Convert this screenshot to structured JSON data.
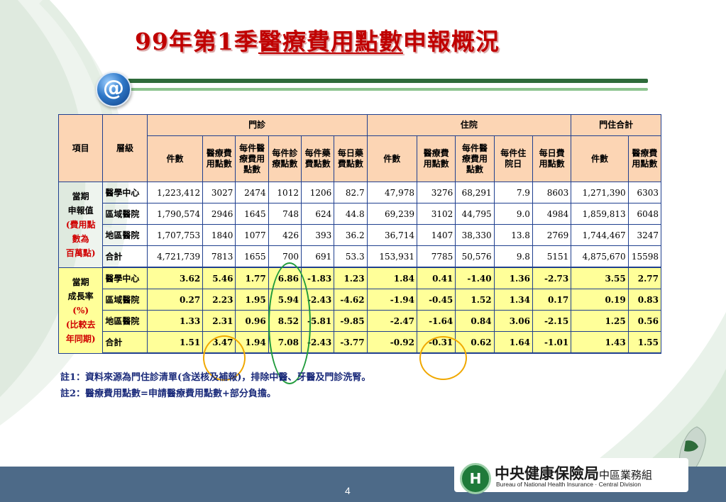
{
  "title": {
    "plain": "99年第1季",
    "underlined": "醫療費用點數",
    "rest": "申報概況"
  },
  "badge": {
    "symbol": "@"
  },
  "table": {
    "header": {
      "item": "項目",
      "level": "層級",
      "group_outpatient": "門診",
      "group_inpatient": "住院",
      "group_total": "門住合計",
      "op_cols": [
        "件數",
        "醫療費用點數",
        "每件醫療費用點數",
        "每件診療點數",
        "每件藥費點數",
        "每日藥費點數"
      ],
      "ip_cols": [
        "件數",
        "醫療費用點數",
        "每件醫療費用點數",
        "每件住院日",
        "每日費用點數"
      ],
      "tot_cols": [
        "件數",
        "醫療費用點數"
      ]
    },
    "section1_label": {
      "l1": "當期",
      "l2": "申報值",
      "l3": "(費用點",
      "l4": "數為",
      "l5": "百萬點)"
    },
    "section2_label": {
      "l1": "當期",
      "l2": "成長率",
      "l3": "(%)",
      "l4": "(比較去",
      "l5": "年同期)"
    },
    "section1_rows": [
      {
        "level": "醫學中心",
        "values": [
          "1,223,412",
          "3027",
          "2474",
          "1012",
          "1206",
          "82.7",
          "47,978",
          "3276",
          "68,291",
          "7.9",
          "8603",
          "1,271,390",
          "6303"
        ]
      },
      {
        "level": "區域醫院",
        "values": [
          "1,790,574",
          "2946",
          "1645",
          "748",
          "624",
          "44.8",
          "69,239",
          "3102",
          "44,795",
          "9.0",
          "4984",
          "1,859,813",
          "6048"
        ]
      },
      {
        "level": "地區醫院",
        "values": [
          "1,707,753",
          "1840",
          "1077",
          "426",
          "393",
          "36.2",
          "36,714",
          "1407",
          "38,330",
          "13.8",
          "2769",
          "1,744,467",
          "3247"
        ]
      },
      {
        "level": "合計",
        "values": [
          "4,721,739",
          "7813",
          "1655",
          "700",
          "691",
          "53.3",
          "153,931",
          "7785",
          "50,576",
          "9.8",
          "5151",
          "4,875,670",
          "15598"
        ]
      }
    ],
    "section2_rows": [
      {
        "level": "醫學中心",
        "values": [
          "3.62",
          "5.46",
          "1.77",
          "6.86",
          "-1.83",
          "1.23",
          "1.84",
          "0.41",
          "-1.40",
          "1.36",
          "-2.73",
          "3.55",
          "2.77"
        ]
      },
      {
        "level": "區域醫院",
        "values": [
          "0.27",
          "2.23",
          "1.95",
          "5.94",
          "-2.43",
          "-4.62",
          "-1.94",
          "-0.45",
          "1.52",
          "1.34",
          "0.17",
          "0.19",
          "0.83"
        ]
      },
      {
        "level": "地區醫院",
        "values": [
          "1.33",
          "2.31",
          "0.96",
          "8.52",
          "-5.81",
          "-9.85",
          "-2.47",
          "-1.64",
          "0.84",
          "3.06",
          "-2.15",
          "1.25",
          "0.56"
        ]
      },
      {
        "level": "合計",
        "values": [
          "1.51",
          "3.47",
          "1.94",
          "7.08",
          "-2.43",
          "-3.77",
          "-0.92",
          "-0.31",
          "0.62",
          "1.64",
          "-1.01",
          "1.43",
          "1.55"
        ]
      }
    ]
  },
  "notes": {
    "n1": "註1：資料來源為門住診清單(含送核及補報)，排除中醫、牙醫及門診洗腎。",
    "n2": "註2：醫療費用點數=申請醫療費用點數+部分負擔。"
  },
  "footer": {
    "page": "4",
    "org_cn": "中央健康保險局",
    "org_sub": "中區業務組",
    "org_en": "Bureau of National Health Insurance · Central Division",
    "logo_mark": "H"
  },
  "colors": {
    "title": "#c00000",
    "header_bg": "#fcd5b4",
    "growth_bg": "#ffff99",
    "grid": "#1f3f8f",
    "footer_bg": "#4d6a88",
    "green_ellipse": "#1e9a3a",
    "orange_ellipse": "#f0a800"
  }
}
